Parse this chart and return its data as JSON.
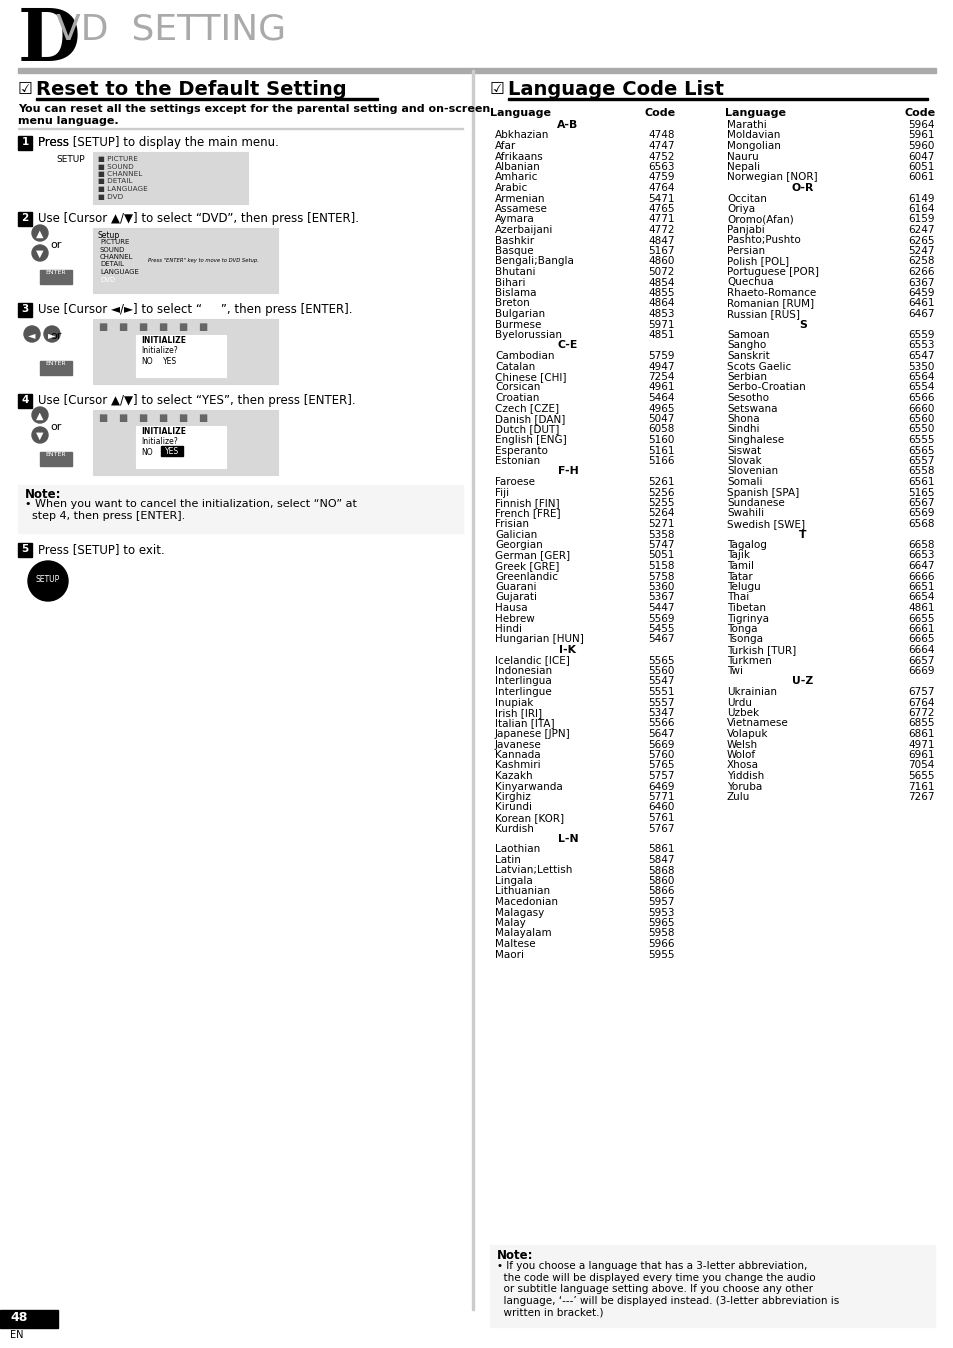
{
  "title_big": "D",
  "title_rest": "VD  SETTING",
  "section1_title_check": "☑",
  "section1_title": "Reset to the Default Setting",
  "section1_desc": "You can reset all the settings except for the parental setting and on-screen\nmenu language.",
  "section2_title_check": "☑",
  "section2_title": "Language Code List",
  "steps": [
    {
      "num": "1",
      "text": "Press [SETUP] to display the main menu."
    },
    {
      "num": "2",
      "text": "Use [Cursor ▲/▼] to select “DVD”, then press [ENTER]."
    },
    {
      "num": "3",
      "text": "Use [Cursor ◄/►] to select “     ”, then press [ENTER]."
    },
    {
      "num": "4",
      "text": "Use [Cursor ▲/▼] to select “YES”, then press [ENTER]."
    },
    {
      "num": "5",
      "text": "Press [SETUP] to exit."
    }
  ],
  "note_box": "Note:\n• When you want to cancel the initialization, select “NO” at\n  step 4, then press [ENTER].",
  "bottom_note": "Note:\n• If you choose a language that has a 3-letter abbreviation,\n  the code will be displayed every time you change the audio\n  or subtitle language setting above. If you choose any other\n  language, ‘---’ will be displayed instead. (3-letter abbreviation is\n  written in bracket.)",
  "page_num": "48",
  "languages_left": [
    [
      "A-B",
      ""
    ],
    [
      "Abkhazian",
      "4748"
    ],
    [
      "Afar",
      "4747"
    ],
    [
      "Afrikaans",
      "4752"
    ],
    [
      "Albanian",
      "6563"
    ],
    [
      "Amharic",
      "4759"
    ],
    [
      "Arabic",
      "4764"
    ],
    [
      "Armenian",
      "5471"
    ],
    [
      "Assamese",
      "4765"
    ],
    [
      "Aymara",
      "4771"
    ],
    [
      "Azerbaijani",
      "4772"
    ],
    [
      "Bashkir",
      "4847"
    ],
    [
      "Basque",
      "5167"
    ],
    [
      "Bengali;Bangla",
      "4860"
    ],
    [
      "Bhutani",
      "5072"
    ],
    [
      "Bihari",
      "4854"
    ],
    [
      "Bislama",
      "4855"
    ],
    [
      "Breton",
      "4864"
    ],
    [
      "Bulgarian",
      "4853"
    ],
    [
      "Burmese",
      "5971"
    ],
    [
      "Byelorussian",
      "4851"
    ],
    [
      "C-E",
      ""
    ],
    [
      "Cambodian",
      "5759"
    ],
    [
      "Catalan",
      "4947"
    ],
    [
      "Chinese [CHI]",
      "7254"
    ],
    [
      "Corsican",
      "4961"
    ],
    [
      "Croatian",
      "5464"
    ],
    [
      "Czech [CZE]",
      "4965"
    ],
    [
      "Danish [DAN]",
      "5047"
    ],
    [
      "Dutch [DUT]",
      "6058"
    ],
    [
      "English [ENG]",
      "5160"
    ],
    [
      "Esperanto",
      "5161"
    ],
    [
      "Estonian",
      "5166"
    ],
    [
      "F-H",
      ""
    ],
    [
      "Faroese",
      "5261"
    ],
    [
      "Fiji",
      "5256"
    ],
    [
      "Finnish [FIN]",
      "5255"
    ],
    [
      "French [FRE]",
      "5264"
    ],
    [
      "Frisian",
      "5271"
    ],
    [
      "Galician",
      "5358"
    ],
    [
      "Georgian",
      "5747"
    ],
    [
      "German [GER]",
      "5051"
    ],
    [
      "Greek [GRE]",
      "5158"
    ],
    [
      "Greenlandic",
      "5758"
    ],
    [
      "Guarani",
      "5360"
    ],
    [
      "Gujarati",
      "5367"
    ],
    [
      "Hausa",
      "5447"
    ],
    [
      "Hebrew",
      "5569"
    ],
    [
      "Hindi",
      "5455"
    ],
    [
      "Hungarian [HUN]",
      "5467"
    ],
    [
      "I-K",
      ""
    ],
    [
      "Icelandic [ICE]",
      "5565"
    ],
    [
      "Indonesian",
      "5560"
    ],
    [
      "Interlingua",
      "5547"
    ],
    [
      "Interlingue",
      "5551"
    ],
    [
      "Inupiak",
      "5557"
    ],
    [
      "Irish [IRI]",
      "5347"
    ],
    [
      "Italian [ITA]",
      "5566"
    ],
    [
      "Japanese [JPN]",
      "5647"
    ],
    [
      "Javanese",
      "5669"
    ],
    [
      "Kannada",
      "5760"
    ],
    [
      "Kashmiri",
      "5765"
    ],
    [
      "Kazakh",
      "5757"
    ],
    [
      "Kinyarwanda",
      "6469"
    ],
    [
      "Kirghiz",
      "5771"
    ],
    [
      "Kirundi",
      "6460"
    ],
    [
      "Korean [KOR]",
      "5761"
    ],
    [
      "Kurdish",
      "5767"
    ],
    [
      "L-N",
      ""
    ],
    [
      "Laothian",
      "5861"
    ],
    [
      "Latin",
      "5847"
    ],
    [
      "Latvian;Lettish",
      "5868"
    ],
    [
      "Lingala",
      "5860"
    ],
    [
      "Lithuanian",
      "5866"
    ],
    [
      "Macedonian",
      "5957"
    ],
    [
      "Malagasy",
      "5953"
    ],
    [
      "Malay",
      "5965"
    ],
    [
      "Malayalam",
      "5958"
    ],
    [
      "Maltese",
      "5966"
    ],
    [
      "Maori",
      "5955"
    ]
  ],
  "languages_right": [
    [
      "Marathi",
      "5964"
    ],
    [
      "Moldavian",
      "5961"
    ],
    [
      "Mongolian",
      "5960"
    ],
    [
      "Nauru",
      "6047"
    ],
    [
      "Nepali",
      "6051"
    ],
    [
      "Norwegian [NOR]",
      "6061"
    ],
    [
      "O-R",
      ""
    ],
    [
      "Occitan",
      "6149"
    ],
    [
      "Oriya",
      "6164"
    ],
    [
      "Oromo(Afan)",
      "6159"
    ],
    [
      "Panjabi",
      "6247"
    ],
    [
      "Pashto;Pushto",
      "6265"
    ],
    [
      "Persian",
      "5247"
    ],
    [
      "Polish [POL]",
      "6258"
    ],
    [
      "Portuguese [POR]",
      "6266"
    ],
    [
      "Quechua",
      "6367"
    ],
    [
      "Rhaeto-Romance",
      "6459"
    ],
    [
      "Romanian [RUM]",
      "6461"
    ],
    [
      "Russian [RUS]",
      "6467"
    ],
    [
      "S",
      ""
    ],
    [
      "Samoan",
      "6559"
    ],
    [
      "Sangho",
      "6553"
    ],
    [
      "Sanskrit",
      "6547"
    ],
    [
      "Scots Gaelic",
      "5350"
    ],
    [
      "Serbian",
      "6564"
    ],
    [
      "Serbo-Croatian",
      "6554"
    ],
    [
      "Sesotho",
      "6566"
    ],
    [
      "Setswana",
      "6660"
    ],
    [
      "Shona",
      "6560"
    ],
    [
      "Sindhi",
      "6550"
    ],
    [
      "Singhalese",
      "6555"
    ],
    [
      "Siswat",
      "6565"
    ],
    [
      "Slovak",
      "6557"
    ],
    [
      "Slovenian",
      "6558"
    ],
    [
      "Somali",
      "6561"
    ],
    [
      "Spanish [SPA]",
      "5165"
    ],
    [
      "Sundanese",
      "6567"
    ],
    [
      "Swahili",
      "6569"
    ],
    [
      "Swedish [SWE]",
      "6568"
    ],
    [
      "T",
      ""
    ],
    [
      "Tagalog",
      "6658"
    ],
    [
      "Tajik",
      "6653"
    ],
    [
      "Tamil",
      "6647"
    ],
    [
      "Tatar",
      "6666"
    ],
    [
      "Telugu",
      "6651"
    ],
    [
      "Thai",
      "6654"
    ],
    [
      "Tibetan",
      "4861"
    ],
    [
      "Tigrinya",
      "6655"
    ],
    [
      "Tonga",
      "6661"
    ],
    [
      "Tsonga",
      "6665"
    ],
    [
      "Turkish [TUR]",
      "6664"
    ],
    [
      "Turkmen",
      "6657"
    ],
    [
      "Twi",
      "6669"
    ],
    [
      "U-Z",
      ""
    ],
    [
      "Ukrainian",
      "6757"
    ],
    [
      "Urdu",
      "6764"
    ],
    [
      "Uzbek",
      "6772"
    ],
    [
      "Vietnamese",
      "6855"
    ],
    [
      "Volapuk",
      "6861"
    ],
    [
      "Welsh",
      "4971"
    ],
    [
      "Wolof",
      "6961"
    ],
    [
      "Xhosa",
      "7054"
    ],
    [
      "Yiddish",
      "5655"
    ],
    [
      "Yoruba",
      "7161"
    ],
    [
      "Zulu",
      "7267"
    ]
  ]
}
